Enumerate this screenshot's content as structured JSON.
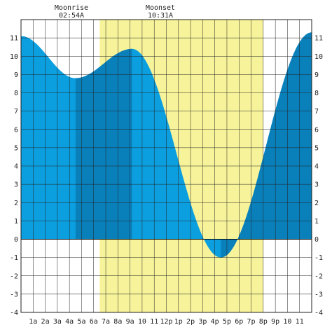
{
  "annotations": {
    "moonrise_label": "Moonrise",
    "moonrise_time": "02:54A",
    "moonset_label": "Moonset",
    "moonset_time": "10:31A"
  },
  "chart_data": {
    "type": "area",
    "title": "",
    "xlabel": "",
    "ylabel": "",
    "xlim": [
      0,
      24
    ],
    "ylim": [
      -4,
      12
    ],
    "grid": true,
    "x_tick_labels": [
      "1a",
      "2a",
      "3a",
      "4a",
      "5a",
      "6a",
      "7a",
      "8a",
      "9a",
      "10",
      "11",
      "12p",
      "1p",
      "2p",
      "3p",
      "4p",
      "5p",
      "6p",
      "7p",
      "8p",
      "9p",
      "10",
      "11"
    ],
    "y_tick_labels": [
      "-4",
      "-3",
      "-2",
      "-1",
      "0",
      "1",
      "2",
      "3",
      "4",
      "5",
      "6",
      "7",
      "8",
      "9",
      "10",
      "11"
    ],
    "tide_extremes": [
      {
        "time": "00:00",
        "hours": 0.0,
        "height": 11.1
      },
      {
        "time": "04:30",
        "hours": 4.5,
        "height": 8.8
      },
      {
        "time": "09:10",
        "hours": 9.17,
        "height": 10.4
      },
      {
        "time": "16:30",
        "hours": 16.5,
        "height": -1.0
      },
      {
        "time": "24:00",
        "hours": 24.0,
        "height": 11.3
      }
    ],
    "moonrise_hours": 2.9,
    "moonset_hours": 10.52,
    "daylight_band_hours": [
      6.5,
      20.0
    ],
    "shading_segments_hours": [
      [
        4.5,
        9.17
      ],
      [
        16.5,
        17.2
      ],
      [
        17.2,
        24.0
      ]
    ],
    "colors": {
      "tide": "#0c9fe0",
      "tide_dark": "#0a80bb",
      "daylight": "#f7f39a",
      "grid": "#222222",
      "zero_line": "#000000"
    }
  }
}
